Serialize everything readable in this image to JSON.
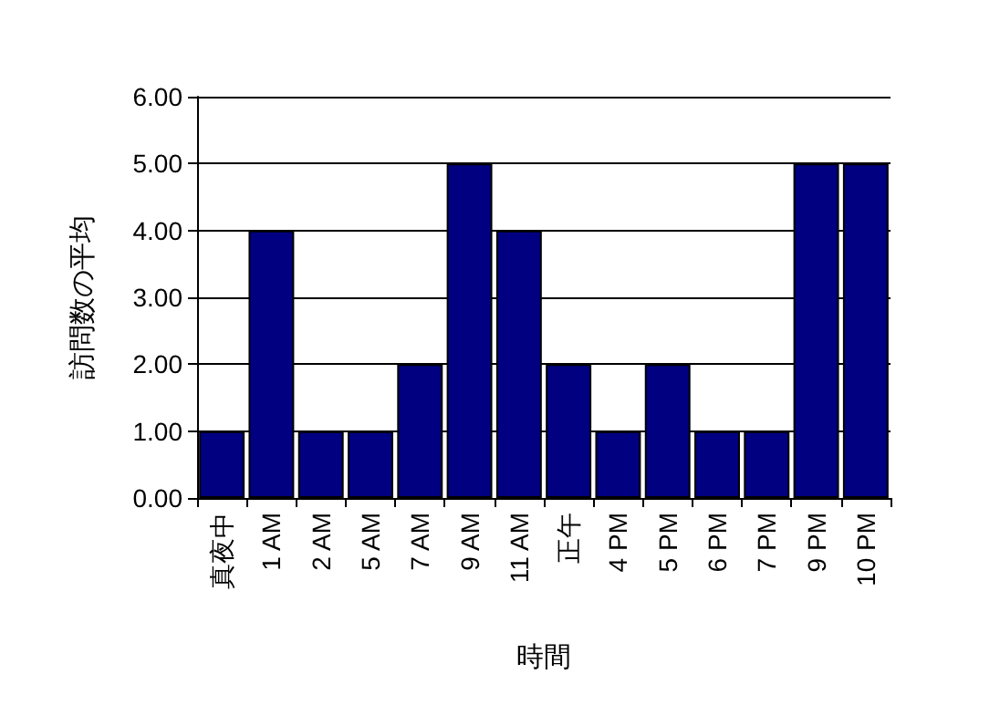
{
  "chart_data": {
    "type": "bar",
    "xlabel": "時間",
    "ylabel": "訪問数の平均",
    "categories": [
      "真夜中",
      "1 AM",
      "2 AM",
      "5 AM",
      "7 AM",
      "9 AM",
      "11 AM",
      "正午",
      "4 PM",
      "5 PM",
      "6 PM",
      "7 PM",
      "9 PM",
      "10 PM"
    ],
    "values": [
      1,
      4,
      1,
      1,
      2,
      5,
      4,
      2,
      1,
      2,
      1,
      1,
      5,
      5
    ],
    "color": "#000080",
    "ylim": [
      0,
      6
    ],
    "yticks": [
      {
        "value": 0,
        "label": "0.00"
      },
      {
        "value": 1,
        "label": "1.00"
      },
      {
        "value": 2,
        "label": "2.00"
      },
      {
        "value": 3,
        "label": "3.00"
      },
      {
        "value": 4,
        "label": "4.00"
      },
      {
        "value": 5,
        "label": "5.00"
      },
      {
        "value": 6,
        "label": "6.00"
      }
    ],
    "grid": "y"
  }
}
